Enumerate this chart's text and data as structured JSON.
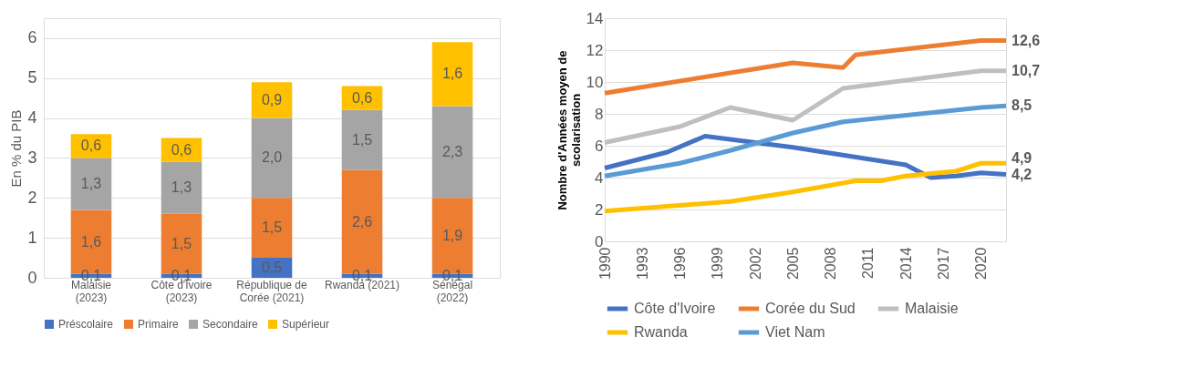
{
  "chart_data": [
    {
      "type": "bar",
      "stacked": true,
      "ylabel": "En % du PIB",
      "categories": [
        "Malaisie (2023)",
        "Côte d'Ivoire (2023)",
        "République de Corée (2021)",
        "Rwanda (2021)",
        "Sénégal (2022)"
      ],
      "series": [
        {
          "name": "Préscolaire",
          "color": "#4472c4",
          "values": [
            0.1,
            0.1,
            0.5,
            0.1,
            0.1
          ],
          "value_labels": [
            "0,1",
            "0,1",
            "0,5",
            "0,1",
            "0,1"
          ]
        },
        {
          "name": "Primaire",
          "color": "#ed7d31",
          "values": [
            1.6,
            1.5,
            1.5,
            2.6,
            1.9
          ],
          "value_labels": [
            "1,6",
            "1,5",
            "1,5",
            "2,6",
            "1,9"
          ]
        },
        {
          "name": "Secondaire",
          "color": "#a5a5a5",
          "values": [
            1.3,
            1.3,
            2.0,
            1.5,
            2.3
          ],
          "value_labels": [
            "1,3",
            "1,3",
            "2,0",
            "1,5",
            "2,3"
          ]
        },
        {
          "name": "Supérieur",
          "color": "#ffc000",
          "values": [
            0.6,
            0.6,
            0.9,
            0.6,
            1.6
          ],
          "value_labels": [
            "0,6",
            "0,6",
            "0,9",
            "0,6",
            "1,6"
          ]
        }
      ],
      "ylim": [
        0,
        6.5
      ],
      "yticks": [
        0,
        1,
        2,
        3,
        4,
        5,
        6
      ],
      "grid": "y",
      "legend": "bottom"
    },
    {
      "type": "line",
      "ylabel": "Nombre d'Années moyen de scolarisation",
      "xlim": [
        1990,
        2022
      ],
      "xticks": [
        1990,
        1993,
        1996,
        1999,
        2002,
        2005,
        2008,
        2011,
        2014,
        2017,
        2020
      ],
      "ylim": [
        0,
        14
      ],
      "yticks": [
        0,
        2,
        4,
        6,
        8,
        10,
        12,
        14
      ],
      "grid": "y",
      "legend": "bottom",
      "line_style": "solid",
      "marker": "none",
      "series": [
        {
          "name": "Côte d'Ivoire",
          "color": "#4472c4",
          "x": [
            1990,
            1995,
            1998,
            2005,
            2014,
            2016,
            2018,
            2020,
            2022
          ],
          "values": [
            4.6,
            5.6,
            6.6,
            5.9,
            4.8,
            4.0,
            4.1,
            4.3,
            4.2
          ],
          "value_labels": [
            null,
            null,
            null,
            null,
            null,
            null,
            null,
            null,
            "4,2"
          ]
        },
        {
          "name": "Corée du Sud",
          "color": "#ed7d31",
          "x": [
            1990,
            2005,
            2009,
            2010,
            2020,
            2022
          ],
          "values": [
            9.3,
            11.2,
            10.9,
            11.7,
            12.6,
            12.6
          ],
          "value_labels": [
            null,
            null,
            null,
            null,
            null,
            "12,6"
          ]
        },
        {
          "name": "Malaisie",
          "color": "#bfbfbf",
          "x": [
            1990,
            1996,
            2000,
            2005,
            2009,
            2020,
            2022
          ],
          "values": [
            6.2,
            7.2,
            8.4,
            7.6,
            9.6,
            10.7,
            10.7
          ],
          "value_labels": [
            null,
            null,
            null,
            null,
            null,
            null,
            "10,7"
          ]
        },
        {
          "name": "Rwanda",
          "color": "#ffc000",
          "x": [
            1990,
            2000,
            2005,
            2010,
            2012,
            2014,
            2018,
            2020,
            2022
          ],
          "values": [
            1.9,
            2.5,
            3.1,
            3.8,
            3.8,
            4.1,
            4.4,
            4.9,
            4.9
          ],
          "value_labels": [
            null,
            null,
            null,
            null,
            null,
            null,
            null,
            null,
            "4,9"
          ]
        },
        {
          "name": "Viet Nam",
          "color": "#5b9bd5",
          "x": [
            1990,
            1996,
            2000,
            2005,
            2009,
            2020,
            2022
          ],
          "values": [
            4.1,
            4.9,
            5.7,
            6.8,
            7.5,
            8.4,
            8.5
          ],
          "value_labels": [
            null,
            null,
            null,
            null,
            null,
            null,
            "8,5"
          ]
        }
      ]
    }
  ]
}
